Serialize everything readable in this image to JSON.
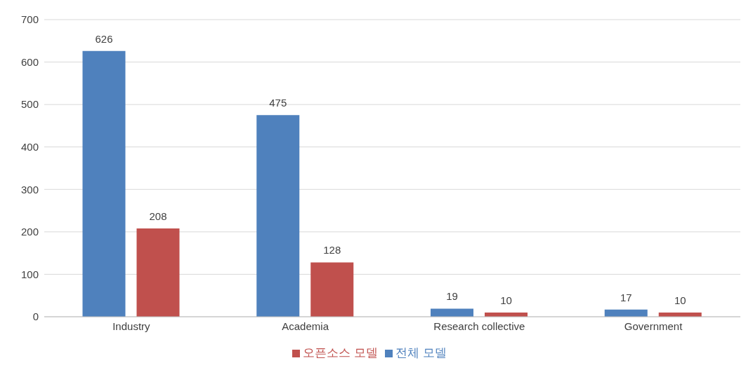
{
  "chart_data": {
    "type": "bar",
    "categories": [
      "Industry",
      "Academia",
      "Research collective",
      "Government"
    ],
    "series": [
      {
        "name": "전체 모델",
        "color": "#4f81bd",
        "values": [
          626,
          475,
          19,
          17
        ]
      },
      {
        "name": "오픈소스 모델",
        "color": "#c0504d",
        "values": [
          208,
          128,
          10,
          10
        ]
      }
    ],
    "ylim": [
      0,
      700
    ],
    "yticks": [
      0,
      100,
      200,
      300,
      400,
      500,
      600,
      700
    ],
    "grid": "y",
    "legend": "bottom",
    "data_labels": true
  }
}
